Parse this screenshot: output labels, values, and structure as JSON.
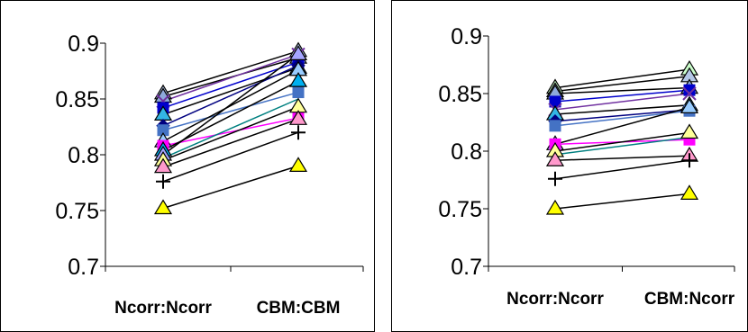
{
  "chart_data": [
    {
      "type": "line",
      "categories": [
        "Ncorr:Ncorr",
        "CBM:CBM"
      ],
      "ylim": [
        0.7,
        0.9
      ],
      "yticks": [
        0.7,
        0.75,
        0.8,
        0.85,
        0.9
      ],
      "ytick_labels": [
        "0.7",
        "0.75",
        "0.8",
        "0.85",
        "0.9"
      ],
      "grid": false,
      "legend": "none",
      "series": [
        {
          "values": [
            0.855,
            0.893
          ],
          "color": "#000000",
          "marker": "triangle",
          "fill": "#b4c7e7"
        },
        {
          "values": [
            0.852,
            0.887
          ],
          "color": "#000000",
          "marker": "triangle",
          "fill": "#8ea9db"
        },
        {
          "values": [
            0.848,
            0.89
          ],
          "color": "#7030a0",
          "marker": "x",
          "fill": "#7030a0"
        },
        {
          "values": [
            0.842,
            0.883
          ],
          "color": "#0000cc",
          "marker": "square",
          "fill": "#0000cc"
        },
        {
          "values": [
            0.836,
            0.878
          ],
          "color": "#000000",
          "marker": "triangle",
          "fill": "#33b5e5"
        },
        {
          "values": [
            0.826,
            0.88
          ],
          "color": "#000080",
          "marker": "diamond",
          "fill": "#000080"
        },
        {
          "values": [
            0.822,
            0.856
          ],
          "color": "#4472c4",
          "marker": "square",
          "fill": "#4472c4"
        },
        {
          "values": [
            0.812,
            0.876
          ],
          "color": "#000000",
          "marker": "triangle",
          "fill": "#99ccff"
        },
        {
          "values": [
            0.808,
            0.833
          ],
          "color": "#ff00ff",
          "marker": "square",
          "fill": "#ff00ff"
        },
        {
          "values": [
            0.804,
            0.866
          ],
          "color": "#000000",
          "marker": "triangle",
          "fill": "#00b0f0"
        },
        {
          "values": [
            0.8,
            0.89
          ],
          "color": "#000000",
          "marker": "triangle",
          "fill": "#a5a5ff"
        },
        {
          "values": [
            0.797,
            0.85
          ],
          "color": "#008080",
          "marker": "none",
          "fill": "#008080"
        },
        {
          "values": [
            0.795,
            0.843
          ],
          "color": "#000000",
          "marker": "triangle",
          "fill": "#ffff99"
        },
        {
          "values": [
            0.789,
            0.832
          ],
          "color": "#000000",
          "marker": "triangle",
          "fill": "#ff99cc"
        },
        {
          "values": [
            0.776,
            0.82
          ],
          "color": "#000000",
          "marker": "plus",
          "fill": "#000000"
        },
        {
          "values": [
            0.752,
            0.79
          ],
          "color": "#000000",
          "marker": "triangle",
          "fill": "#ffff00"
        }
      ]
    },
    {
      "type": "line",
      "categories": [
        "Ncorr:Ncorr",
        "CBM:Ncorr"
      ],
      "ylim": [
        0.7,
        0.9
      ],
      "yticks": [
        0.7,
        0.75,
        0.8,
        0.85,
        0.9
      ],
      "ytick_labels": [
        "0.7",
        "0.75",
        "0.8",
        "0.85",
        "0.9"
      ],
      "grid": false,
      "legend": "none",
      "series": [
        {
          "values": [
            0.855,
            0.871
          ],
          "color": "#000000",
          "marker": "triangle",
          "fill": "#ccffcc"
        },
        {
          "values": [
            0.852,
            0.865
          ],
          "color": "#000000",
          "marker": "triangle",
          "fill": "#b4c7e7"
        },
        {
          "values": [
            0.85,
            0.855
          ],
          "color": "#000000",
          "marker": "triangle",
          "fill": "#8ea9db"
        },
        {
          "values": [
            0.843,
            0.853
          ],
          "color": "#0000cc",
          "marker": "square",
          "fill": "#0000cc"
        },
        {
          "values": [
            0.836,
            0.85
          ],
          "color": "#7030a0",
          "marker": "x",
          "fill": "#7030a0"
        },
        {
          "values": [
            0.832,
            0.84
          ],
          "color": "#000000",
          "marker": "triangle",
          "fill": "#33b5e5"
        },
        {
          "values": [
            0.826,
            0.836
          ],
          "color": "#000080",
          "marker": "diamond",
          "fill": "#000080"
        },
        {
          "values": [
            0.822,
            0.835
          ],
          "color": "#4472c4",
          "marker": "square",
          "fill": "#4472c4"
        },
        {
          "values": [
            0.806,
            0.838
          ],
          "color": "#000000",
          "marker": "triangle",
          "fill": "#99ccff"
        },
        {
          "values": [
            0.806,
            0.81
          ],
          "color": "#ff00ff",
          "marker": "square",
          "fill": "#ff00ff"
        },
        {
          "values": [
            0.8,
            0.816
          ],
          "color": "#000000",
          "marker": "triangle",
          "fill": "#ffff99"
        },
        {
          "values": [
            0.797,
            0.812
          ],
          "color": "#008080",
          "marker": "none",
          "fill": "#008080"
        },
        {
          "values": [
            0.792,
            0.796
          ],
          "color": "#000000",
          "marker": "triangle",
          "fill": "#ff99cc"
        },
        {
          "values": [
            0.776,
            0.792
          ],
          "color": "#000000",
          "marker": "plus",
          "fill": "#000000"
        },
        {
          "values": [
            0.75,
            0.763
          ],
          "color": "#000000",
          "marker": "triangle",
          "fill": "#ffff00"
        }
      ]
    }
  ]
}
